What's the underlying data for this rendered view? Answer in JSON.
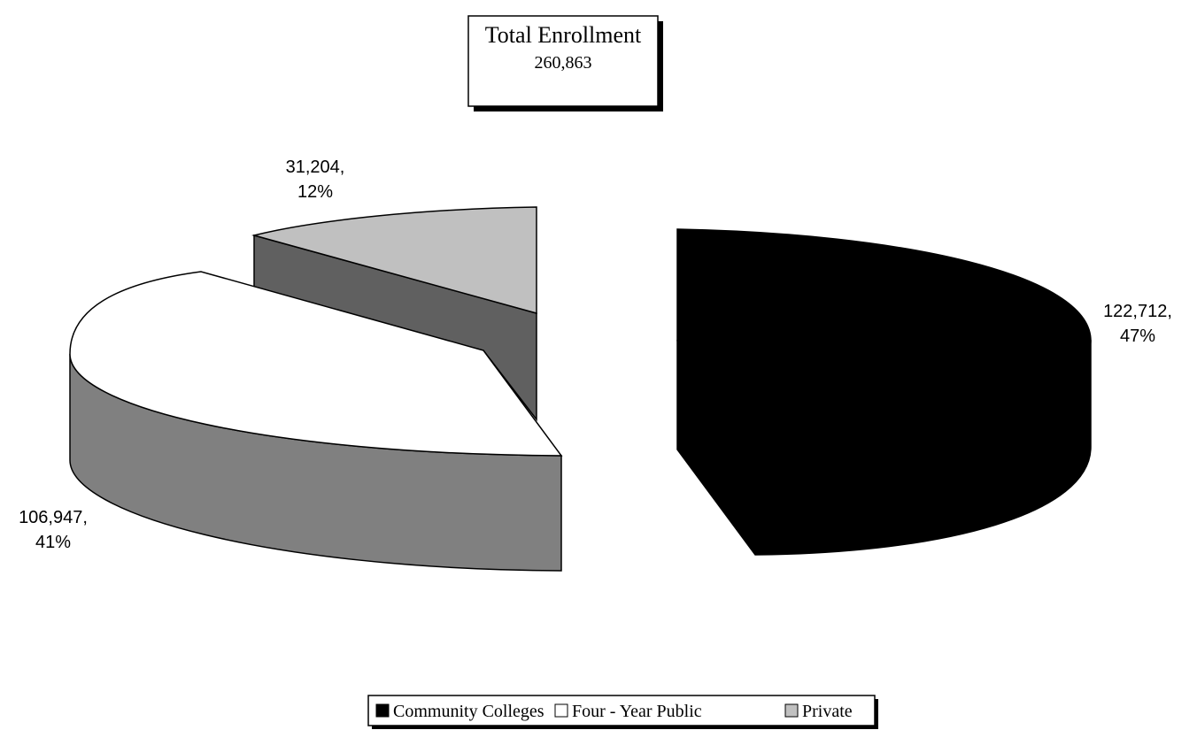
{
  "chart_data": {
    "type": "pie",
    "style": "3d-exploded",
    "total_box": {
      "line1": "Total Enrollment",
      "line2": "260,863"
    },
    "slices": [
      {
        "name": "Community Colleges",
        "value": 122712,
        "percent": 47,
        "label_value": "122,712,",
        "label_pct": "47%",
        "color": "#000000",
        "side_color": "#000000"
      },
      {
        "name": "Four - Year Public",
        "value": 106947,
        "percent": 41,
        "label_value": "106,947,",
        "label_pct": "41%",
        "color": "#ffffff",
        "side_color": "#808080"
      },
      {
        "name": "Private",
        "value": 31204,
        "percent": 12,
        "label_value": "31,204,",
        "label_pct": "12%",
        "color": "#c0c0c0",
        "side_color": "#606060"
      }
    ],
    "legend": {
      "position": "bottom-center",
      "entries": [
        {
          "label": "Community Colleges",
          "color": "#000000"
        },
        {
          "label": "Four - Year Public",
          "color": "#ffffff"
        },
        {
          "label": "Private",
          "color": "#c0c0c0"
        }
      ]
    }
  }
}
